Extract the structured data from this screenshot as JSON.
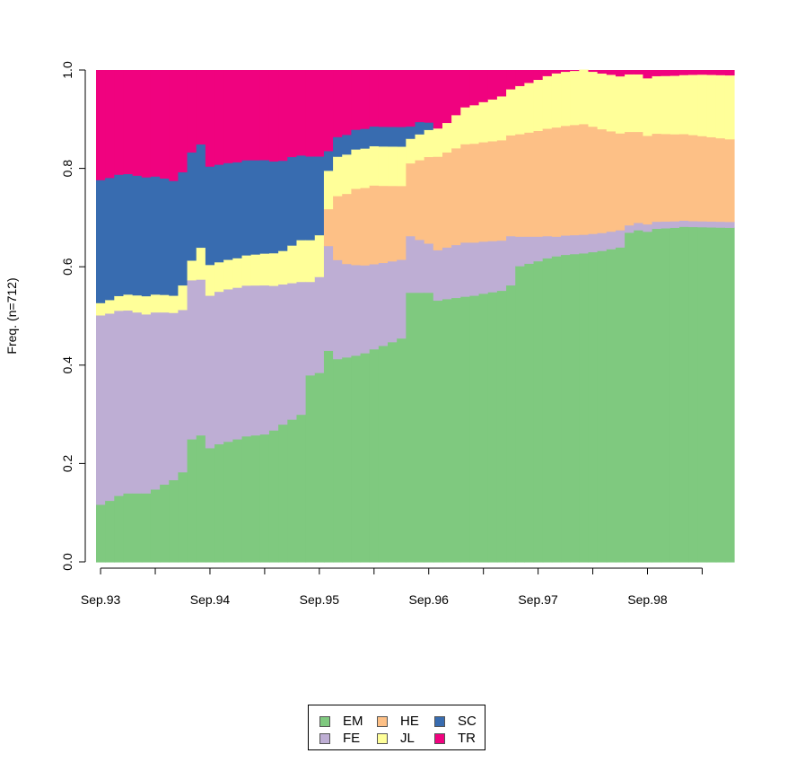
{
  "chart_data": {
    "type": "area",
    "subtype": "stacked-state-distribution",
    "title": "",
    "xlabel": "",
    "ylabel": "Freq. (n=712)",
    "ylim": [
      0,
      1
    ],
    "y_ticks": [
      "0.0",
      "0.2",
      "0.4",
      "0.6",
      "0.8",
      "1.0"
    ],
    "x_ticks": [
      "Sep.93",
      "Sep.94",
      "Sep.95",
      "Sep.96",
      "Sep.97",
      "Sep.98"
    ],
    "n_periods": 70,
    "series": [
      {
        "name": "EM",
        "color": "#7fc97f",
        "anchors": [
          [
            0,
            0.117
          ],
          [
            1,
            0.125
          ],
          [
            2,
            0.135
          ],
          [
            3,
            0.14
          ],
          [
            5,
            0.14
          ],
          [
            6,
            0.148
          ],
          [
            7,
            0.158
          ],
          [
            8,
            0.167
          ],
          [
            9,
            0.183
          ],
          [
            10,
            0.25
          ],
          [
            11,
            0.258
          ],
          [
            12,
            0.232
          ],
          [
            13,
            0.24
          ],
          [
            15,
            0.25
          ],
          [
            16,
            0.256
          ],
          [
            18,
            0.26
          ],
          [
            19,
            0.268
          ],
          [
            20,
            0.28
          ],
          [
            21,
            0.29
          ],
          [
            22,
            0.3
          ],
          [
            23,
            0.38
          ],
          [
            24,
            0.385
          ],
          [
            25,
            0.43
          ],
          [
            26,
            0.413
          ],
          [
            28,
            0.42
          ],
          [
            29,
            0.425
          ],
          [
            30,
            0.433
          ],
          [
            31,
            0.44
          ],
          [
            33,
            0.455
          ],
          [
            34,
            0.548
          ],
          [
            36,
            0.548
          ],
          [
            37,
            0.532
          ],
          [
            38,
            0.535
          ],
          [
            40,
            0.54
          ],
          [
            41,
            0.542
          ],
          [
            42,
            0.546
          ],
          [
            44,
            0.552
          ],
          [
            45,
            0.563
          ],
          [
            46,
            0.602
          ],
          [
            48,
            0.612
          ],
          [
            49,
            0.618
          ],
          [
            50,
            0.622
          ],
          [
            51,
            0.625
          ],
          [
            53,
            0.628
          ],
          [
            55,
            0.633
          ],
          [
            57,
            0.64
          ],
          [
            58,
            0.67
          ],
          [
            59,
            0.675
          ],
          [
            60,
            0.672
          ],
          [
            61,
            0.678
          ],
          [
            63,
            0.68
          ],
          [
            64,
            0.682
          ],
          [
            69,
            0.68
          ]
        ]
      },
      {
        "name": "FE",
        "color": "#beaed4",
        "anchors": [
          [
            0,
            0.385
          ],
          [
            3,
            0.372
          ],
          [
            6,
            0.36
          ],
          [
            9,
            0.33
          ],
          [
            12,
            0.31
          ],
          [
            14,
            0.31
          ],
          [
            18,
            0.303
          ],
          [
            20,
            0.285
          ],
          [
            22,
            0.27
          ],
          [
            23,
            0.19
          ],
          [
            24,
            0.195
          ],
          [
            25,
            0.213
          ],
          [
            27,
            0.19
          ],
          [
            30,
            0.173
          ],
          [
            33,
            0.16
          ],
          [
            34,
            0.115
          ],
          [
            36,
            0.1
          ],
          [
            40,
            0.11
          ],
          [
            45,
            0.1
          ],
          [
            46,
            0.06
          ],
          [
            50,
            0.04
          ],
          [
            57,
            0.035
          ],
          [
            58,
            0.015
          ],
          [
            60,
            0.015
          ],
          [
            65,
            0.012
          ],
          [
            69,
            0.012
          ]
        ]
      },
      {
        "name": "HE",
        "color": "#fdc086",
        "anchors": [
          [
            0,
            0
          ],
          [
            24,
            0
          ],
          [
            25,
            0.075
          ],
          [
            26,
            0.13
          ],
          [
            28,
            0.155
          ],
          [
            30,
            0.16
          ],
          [
            33,
            0.15
          ],
          [
            34,
            0.148
          ],
          [
            37,
            0.19
          ],
          [
            40,
            0.2
          ],
          [
            45,
            0.205
          ],
          [
            48,
            0.215
          ],
          [
            50,
            0.222
          ],
          [
            53,
            0.225
          ],
          [
            58,
            0.19
          ],
          [
            60,
            0.18
          ],
          [
            65,
            0.175
          ],
          [
            69,
            0.168
          ]
        ]
      },
      {
        "name": "JL",
        "color": "#ffff99",
        "anchors": [
          [
            0,
            0.025
          ],
          [
            2,
            0.03
          ],
          [
            5,
            0.037
          ],
          [
            8,
            0.035
          ],
          [
            9,
            0.05
          ],
          [
            10,
            0.04
          ],
          [
            11,
            0.065
          ],
          [
            13,
            0.06
          ],
          [
            15,
            0.06
          ],
          [
            17,
            0.063
          ],
          [
            20,
            0.068
          ],
          [
            22,
            0.085
          ],
          [
            24,
            0.085
          ],
          [
            25,
            0.078
          ],
          [
            26,
            0.08
          ],
          [
            28,
            0.08
          ],
          [
            30,
            0.08
          ],
          [
            33,
            0.08
          ],
          [
            34,
            0.05
          ],
          [
            36,
            0.055
          ],
          [
            38,
            0.06
          ],
          [
            40,
            0.075
          ],
          [
            43,
            0.085
          ],
          [
            46,
            0.098
          ],
          [
            50,
            0.11
          ],
          [
            53,
            0.11
          ],
          [
            56,
            0.115
          ],
          [
            58,
            0.117
          ],
          [
            61,
            0.117
          ],
          [
            64,
            0.12
          ],
          [
            66,
            0.125
          ],
          [
            69,
            0.13
          ]
        ]
      },
      {
        "name": "SC",
        "color": "#386cb0",
        "anchors": [
          [
            0,
            0.25
          ],
          [
            3,
            0.245
          ],
          [
            6,
            0.24
          ],
          [
            9,
            0.23
          ],
          [
            12,
            0.2
          ],
          [
            15,
            0.195
          ],
          [
            18,
            0.19
          ],
          [
            21,
            0.18
          ],
          [
            22,
            0.172
          ],
          [
            23,
            0.17
          ],
          [
            24,
            0.16
          ],
          [
            25,
            0.04
          ],
          [
            27,
            0.04
          ],
          [
            30,
            0.04
          ],
          [
            33,
            0.04
          ],
          [
            34,
            0.025
          ],
          [
            35,
            0.025
          ],
          [
            36,
            0.015
          ],
          [
            37,
            0
          ],
          [
            69,
            0
          ]
        ]
      },
      {
        "name": "TR",
        "color": "#f0027f",
        "rest": true
      }
    ]
  },
  "legend": {
    "items": [
      {
        "label": "EM",
        "color": "#7fc97f"
      },
      {
        "label": "HE",
        "color": "#fdc086"
      },
      {
        "label": "SC",
        "color": "#386cb0"
      },
      {
        "label": "FE",
        "color": "#beaed4"
      },
      {
        "label": "JL",
        "color": "#ffff99"
      },
      {
        "label": "TR",
        "color": "#f0027f"
      }
    ]
  }
}
